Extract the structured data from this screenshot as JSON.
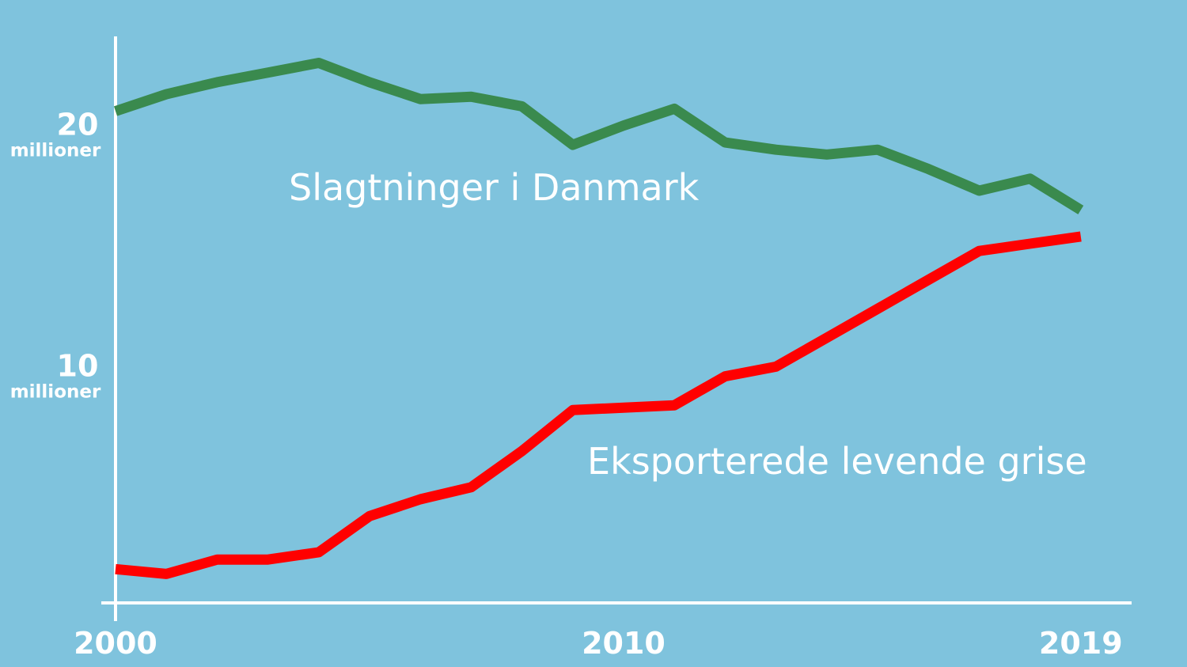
{
  "chart_data": {
    "type": "line",
    "x": [
      2000,
      2001,
      2002,
      2003,
      2004,
      2005,
      2006,
      2007,
      2008,
      2009,
      2010,
      2011,
      2012,
      2013,
      2014,
      2015,
      2016,
      2017,
      2018,
      2019
    ],
    "xlim": [
      2000,
      2020
    ],
    "ylim": [
      0,
      23.5
    ],
    "x_ticks": [
      {
        "value": 2000,
        "label": "2000"
      },
      {
        "value": 2010,
        "label": "2010"
      },
      {
        "value": 2019,
        "label": "2019"
      }
    ],
    "y_ticks": [
      {
        "value": 20,
        "label": "20",
        "unit": "millioner"
      },
      {
        "value": 10,
        "label": "10",
        "unit": "millioner"
      }
    ],
    "series": [
      {
        "name": "Slagtninger i Danmark",
        "color": "#3a8a4e",
        "values": [
          20.4,
          21.1,
          21.6,
          22.0,
          22.4,
          21.6,
          20.9,
          21.0,
          20.6,
          19.0,
          19.8,
          20.5,
          19.1,
          18.8,
          18.6,
          18.8,
          18.0,
          17.1,
          17.6,
          16.3
        ]
      },
      {
        "name": "Eksporterede levende grise",
        "color": "#ff0000",
        "values": [
          1.4,
          1.2,
          1.8,
          1.8,
          2.1,
          3.6,
          4.3,
          4.8,
          6.3,
          8.0,
          8.1,
          8.2,
          9.4,
          9.8,
          11.0,
          12.2,
          13.4,
          14.6,
          14.9,
          15.2
        ]
      }
    ],
    "axis_color": "#ffffff",
    "grid": false
  }
}
